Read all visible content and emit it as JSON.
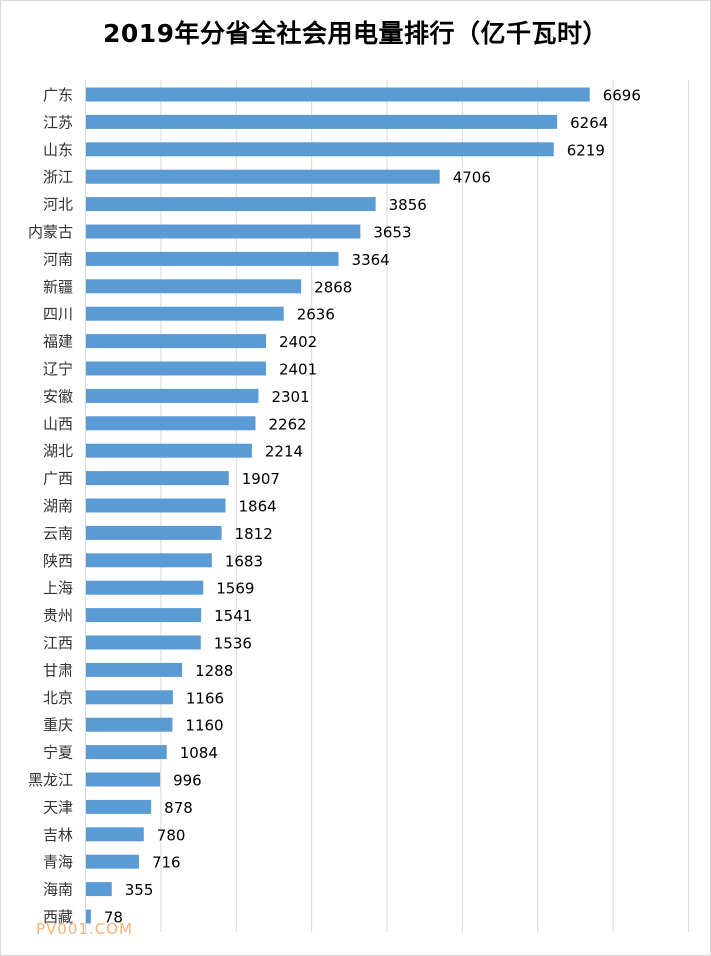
{
  "chart_data": {
    "type": "bar",
    "orientation": "horizontal",
    "title": "2019年分省全社会用电量排行（亿千瓦时）",
    "xlim": [
      0,
      8000
    ],
    "grid": true,
    "legend": "none",
    "bar_color": "#5b9bd5",
    "categories": [
      "广东",
      "江苏",
      "山东",
      "浙江",
      "河北",
      "内蒙古",
      "河南",
      "新疆",
      "四川",
      "福建",
      "辽宁",
      "安徽",
      "山西",
      "湖北",
      "广西",
      "湖南",
      "云南",
      "陕西",
      "上海",
      "贵州",
      "江西",
      "甘肃",
      "北京",
      "重庆",
      "宁夏",
      "黑龙江",
      "天津",
      "吉林",
      "青海",
      "海南",
      "西藏"
    ],
    "values": [
      6696,
      6264,
      6219,
      4706,
      3856,
      3653,
      3364,
      2868,
      2636,
      2402,
      2401,
      2301,
      2262,
      2214,
      1907,
      1864,
      1812,
      1683,
      1569,
      1541,
      1536,
      1288,
      1166,
      1160,
      1084,
      996,
      878,
      780,
      716,
      355,
      78
    ]
  },
  "watermark": "PV001.COM"
}
